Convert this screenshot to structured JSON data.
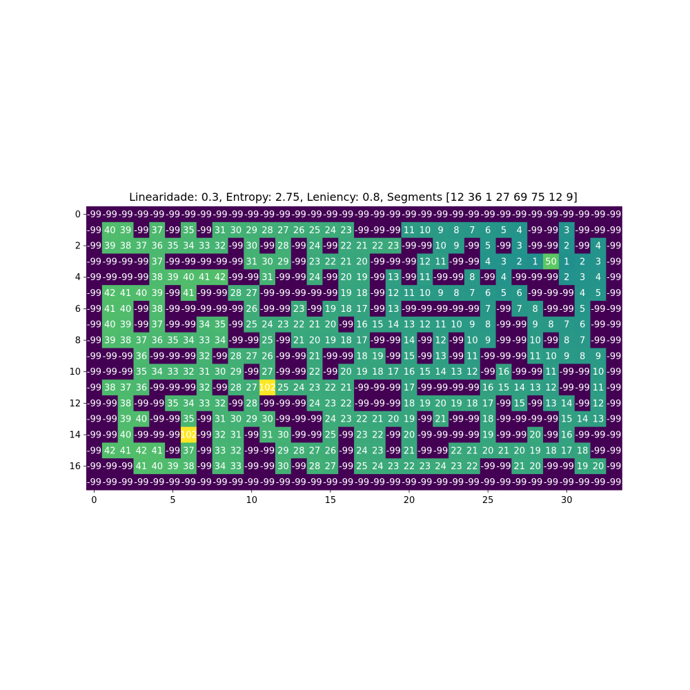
{
  "chart_data": {
    "type": "heatmap",
    "title": "Linearidade: 0.3, Entropy: 2.75, Leniency: 0.8, Segments [12 36  1 27 69 75 12  9]",
    "xlabel": "",
    "ylabel": "",
    "colormap": "viridis",
    "vmin": -99,
    "vmax": 102,
    "x_ticks": [
      0,
      5,
      10,
      15,
      20,
      25,
      30
    ],
    "y_ticks": [
      0,
      2,
      4,
      6,
      8,
      10,
      12,
      14,
      16
    ],
    "rows": 18,
    "cols": 34,
    "values": [
      [
        -99,
        -99,
        -99,
        -99,
        -99,
        -99,
        -99,
        -99,
        -99,
        -99,
        -99,
        -99,
        -99,
        -99,
        -99,
        -99,
        -99,
        -99,
        -99,
        -99,
        -99,
        -99,
        -99,
        -99,
        -99,
        -99,
        -99,
        -99,
        -99,
        -99,
        -99,
        -99,
        -99,
        -99
      ],
      [
        -99,
        40,
        39,
        -99,
        37,
        -99,
        35,
        -99,
        31,
        30,
        29,
        28,
        27,
        26,
        25,
        24,
        23,
        -99,
        -99,
        -99,
        11,
        10,
        9,
        8,
        7,
        6,
        5,
        4,
        -99,
        -99,
        3,
        -99,
        -99,
        -99
      ],
      [
        -99,
        39,
        38,
        37,
        36,
        35,
        34,
        33,
        32,
        -99,
        30,
        -99,
        28,
        -99,
        24,
        -99,
        22,
        21,
        22,
        23,
        -99,
        -99,
        10,
        9,
        -99,
        5,
        -99,
        3,
        -99,
        -99,
        2,
        -99,
        4,
        -99
      ],
      [
        -99,
        -99,
        -99,
        -99,
        37,
        -99,
        -99,
        -99,
        -99,
        -99,
        31,
        30,
        29,
        -99,
        23,
        22,
        21,
        20,
        -99,
        -99,
        -99,
        12,
        11,
        -99,
        -99,
        4,
        3,
        2,
        1,
        50,
        1,
        2,
        3,
        -99
      ],
      [
        -99,
        -99,
        -99,
        -99,
        38,
        39,
        40,
        41,
        42,
        -99,
        -99,
        31,
        -99,
        -99,
        24,
        -99,
        20,
        19,
        -99,
        13,
        -99,
        11,
        -99,
        -99,
        8,
        -99,
        4,
        -99,
        -99,
        -99,
        2,
        3,
        4,
        -99
      ],
      [
        -99,
        42,
        41,
        40,
        39,
        -99,
        41,
        -99,
        -99,
        28,
        27,
        -99,
        -99,
        -99,
        -99,
        -99,
        19,
        18,
        -99,
        12,
        11,
        10,
        9,
        8,
        7,
        6,
        5,
        6,
        -99,
        -99,
        -99,
        4,
        5,
        -99
      ],
      [
        -99,
        41,
        40,
        -99,
        38,
        -99,
        -99,
        -99,
        -99,
        -99,
        26,
        -99,
        -99,
        23,
        -99,
        19,
        18,
        17,
        -99,
        13,
        -99,
        -99,
        -99,
        -99,
        -99,
        7,
        -99,
        7,
        8,
        -99,
        -99,
        5,
        -99,
        -99
      ],
      [
        -99,
        40,
        39,
        -99,
        37,
        -99,
        -99,
        34,
        35,
        -99,
        25,
        24,
        23,
        22,
        21,
        20,
        -99,
        16,
        15,
        14,
        13,
        12,
        11,
        10,
        9,
        8,
        -99,
        -99,
        9,
        8,
        7,
        6,
        -99,
        -99
      ],
      [
        -99,
        39,
        38,
        37,
        36,
        35,
        34,
        33,
        34,
        -99,
        -99,
        25,
        -99,
        21,
        20,
        19,
        18,
        17,
        -99,
        -99,
        14,
        -99,
        12,
        -99,
        10,
        9,
        -99,
        -99,
        10,
        -99,
        8,
        7,
        -99,
        -99
      ],
      [
        -99,
        -99,
        -99,
        36,
        -99,
        -99,
        -99,
        32,
        -99,
        28,
        27,
        26,
        -99,
        -99,
        21,
        -99,
        -99,
        18,
        19,
        -99,
        15,
        -99,
        13,
        -99,
        11,
        -99,
        -99,
        -99,
        11,
        10,
        9,
        8,
        9,
        -99
      ],
      [
        -99,
        -99,
        -99,
        35,
        34,
        33,
        32,
        31,
        30,
        29,
        -99,
        27,
        -99,
        -99,
        22,
        -99,
        20,
        19,
        18,
        17,
        16,
        15,
        14,
        13,
        12,
        -99,
        16,
        -99,
        -99,
        11,
        -99,
        -99,
        10,
        -99
      ],
      [
        -99,
        38,
        37,
        36,
        -99,
        -99,
        -99,
        32,
        -99,
        28,
        27,
        102,
        25,
        24,
        23,
        22,
        21,
        -99,
        -99,
        -99,
        17,
        -99,
        -99,
        -99,
        -99,
        16,
        15,
        14,
        13,
        12,
        -99,
        -99,
        11,
        -99
      ],
      [
        -99,
        -99,
        38,
        -99,
        -99,
        35,
        34,
        33,
        32,
        -99,
        28,
        -99,
        -99,
        -99,
        24,
        23,
        22,
        -99,
        -99,
        -99,
        18,
        19,
        20,
        19,
        18,
        17,
        -99,
        15,
        -99,
        13,
        14,
        -99,
        12,
        -99
      ],
      [
        -99,
        -99,
        39,
        40,
        -99,
        -99,
        35,
        -99,
        31,
        30,
        29,
        30,
        -99,
        -99,
        -99,
        24,
        23,
        22,
        21,
        20,
        19,
        -99,
        21,
        -99,
        -99,
        18,
        -99,
        -99,
        -99,
        -99,
        15,
        14,
        13,
        -99
      ],
      [
        -99,
        -99,
        40,
        -99,
        -99,
        -99,
        102,
        -99,
        32,
        31,
        -99,
        31,
        30,
        -99,
        -99,
        25,
        -99,
        23,
        22,
        -99,
        20,
        -99,
        -99,
        -99,
        -99,
        19,
        -99,
        -99,
        20,
        -99,
        16,
        -99,
        -99,
        -99
      ],
      [
        -99,
        42,
        41,
        42,
        41,
        -99,
        37,
        -99,
        33,
        32,
        -99,
        -99,
        29,
        28,
        27,
        26,
        -99,
        24,
        23,
        -99,
        21,
        -99,
        -99,
        22,
        21,
        20,
        21,
        20,
        19,
        18,
        17,
        18,
        -99,
        -99
      ],
      [
        -99,
        -99,
        -99,
        41,
        40,
        39,
        38,
        -99,
        34,
        33,
        -99,
        -99,
        30,
        -99,
        28,
        27,
        -99,
        25,
        24,
        23,
        22,
        23,
        24,
        23,
        22,
        -99,
        -99,
        21,
        20,
        -99,
        -99,
        19,
        20,
        -99
      ],
      [
        -99,
        -99,
        -99,
        -99,
        -99,
        -99,
        -99,
        -99,
        -99,
        -99,
        -99,
        -99,
        -99,
        -99,
        -99,
        -99,
        -99,
        -99,
        -99,
        -99,
        -99,
        -99,
        -99,
        -99,
        -99,
        -99,
        -99,
        -99,
        -99,
        -99,
        -99,
        -99,
        -99,
        -99
      ]
    ]
  }
}
